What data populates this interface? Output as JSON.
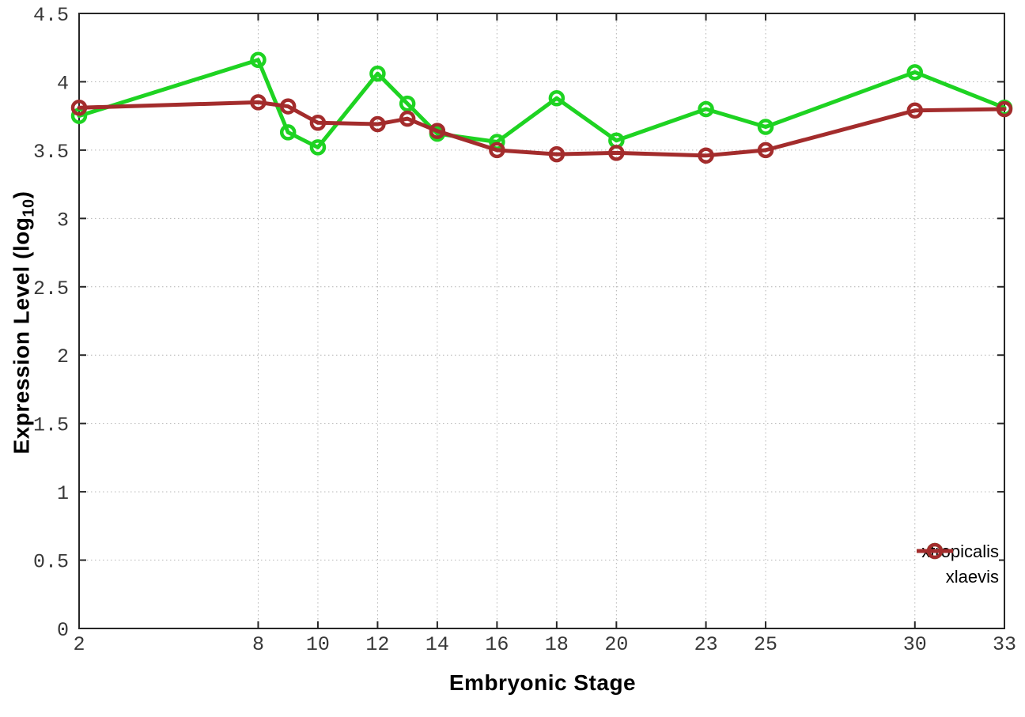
{
  "window": {
    "background": "#ffffff"
  },
  "chart_data": {
    "type": "line",
    "title": "",
    "xlabel": "Embryonic Stage",
    "ylabel": "Expression Level (log10)",
    "ylabel_parts": {
      "pre": "Expression Level (log",
      "sub": "10",
      "post": ")"
    },
    "x": [
      2,
      8,
      9,
      10,
      12,
      13,
      14,
      16,
      18,
      20,
      23,
      25,
      30,
      33
    ],
    "xlim": [
      2,
      33
    ],
    "ylim": [
      0,
      4.5
    ],
    "xticks": {
      "values": [
        2,
        8,
        10,
        12,
        14,
        16,
        18,
        20,
        23,
        25,
        30,
        33
      ],
      "labels": [
        "2",
        "8",
        "10",
        "12",
        "14",
        "16",
        "18",
        "20",
        "23",
        "25",
        "30",
        "33"
      ]
    },
    "yticks": {
      "values": [
        0,
        0.5,
        1,
        1.5,
        2,
        2.5,
        3,
        3.5,
        4,
        4.5
      ],
      "labels": [
        "0",
        "0.5",
        "1",
        "1.5",
        "2",
        "2.5",
        "3",
        "3.5",
        "4",
        "4.5"
      ]
    },
    "grid": true,
    "legend_position": "inside-bottom-right",
    "series": [
      {
        "name": "xtropicalis",
        "color": "#1ed322",
        "marker": "open-circle",
        "values": [
          3.75,
          4.16,
          3.63,
          3.52,
          4.06,
          3.84,
          3.62,
          3.56,
          3.88,
          3.57,
          3.8,
          3.67,
          4.07,
          3.81
        ]
      },
      {
        "name": "xlaevis",
        "color": "#a32c2c",
        "marker": "open-circle",
        "values": [
          3.81,
          3.85,
          3.82,
          3.7,
          3.69,
          3.73,
          3.64,
          3.5,
          3.47,
          3.48,
          3.46,
          3.5,
          3.79,
          3.8
        ]
      }
    ]
  },
  "style": {
    "axis_color": "#262626",
    "grid_color": "#b4b4b4",
    "tick_label_color": "#383838",
    "title_color": "#000000"
  }
}
